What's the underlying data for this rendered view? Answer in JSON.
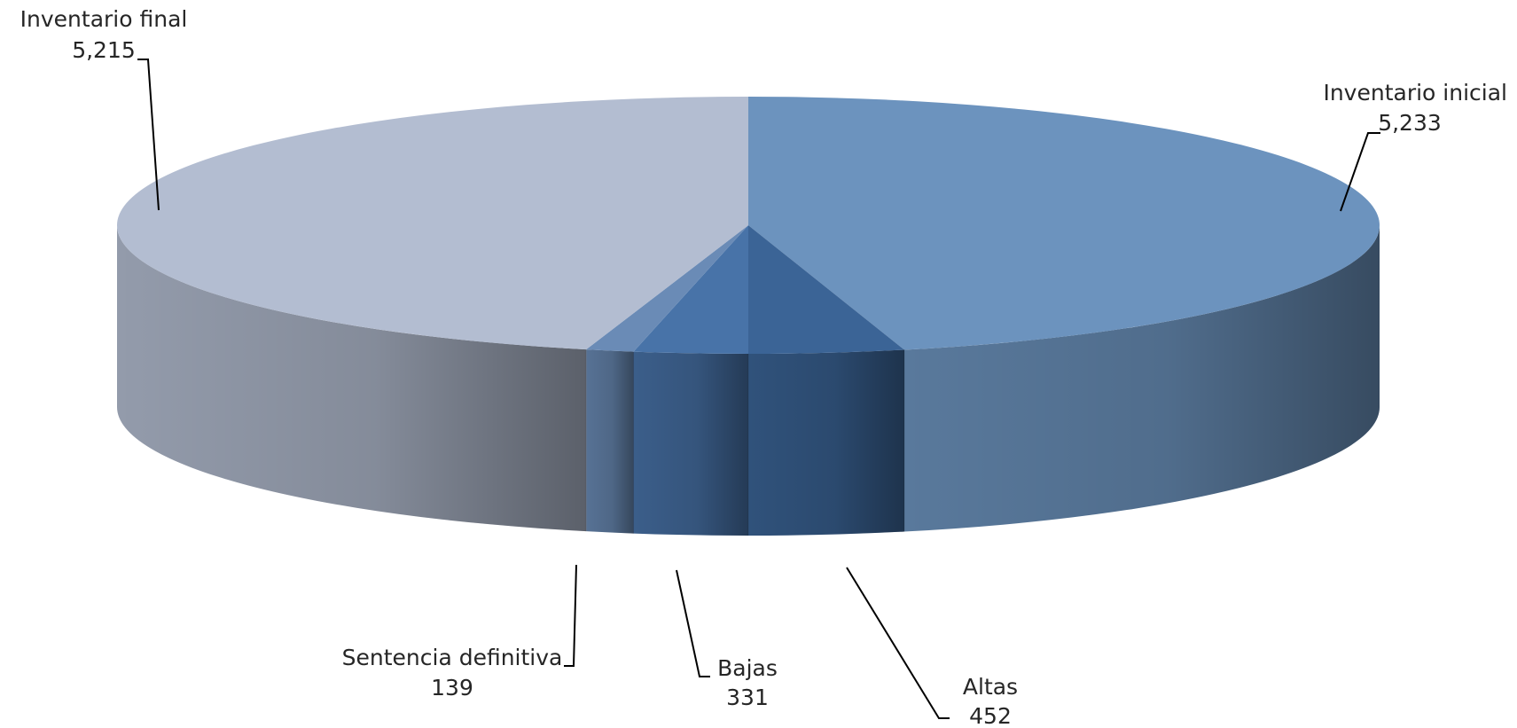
{
  "chart_data": {
    "type": "pie",
    "style": "3d-pie",
    "title": "",
    "legend": "none",
    "slices": [
      {
        "label": "Inventario inicial",
        "value": 5233,
        "value_text": "5,233",
        "color": "#6C93BE"
      },
      {
        "label": "Altas",
        "value": 452,
        "value_text": "452",
        "color": "#3B6496"
      },
      {
        "label": "Bajas",
        "value": 331,
        "value_text": "331",
        "color": "#4873A8"
      },
      {
        "label": "Sentencia definitiva",
        "value": 139,
        "value_text": "139",
        "color": "#6A8BB6"
      },
      {
        "label": "Inventario final",
        "value": 5215,
        "value_text": "5,215",
        "color": "#B3BDD1"
      }
    ]
  }
}
